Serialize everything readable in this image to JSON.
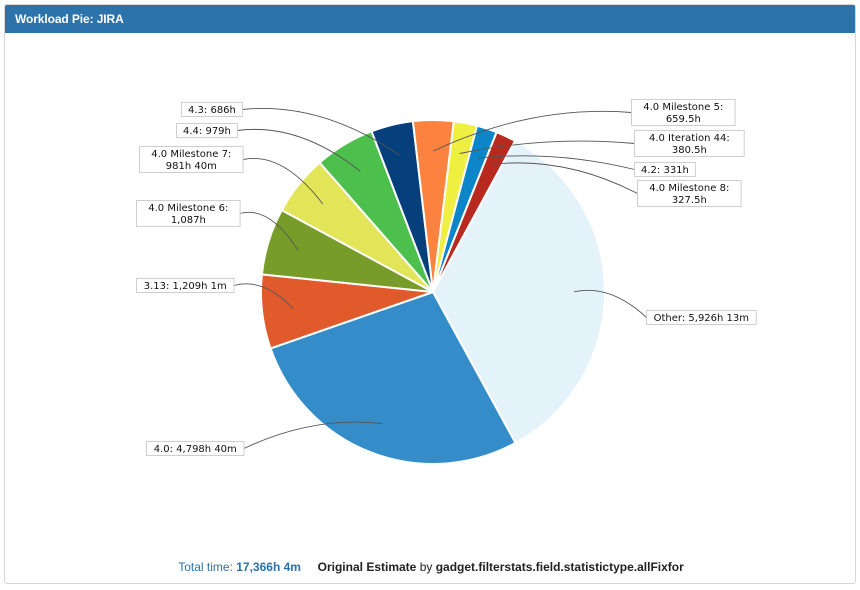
{
  "gadget": {
    "title": "Workload Pie: JIRA"
  },
  "footer": {
    "total_label": "Total time:",
    "total_value": "17,366h 4m",
    "statistic": "Original Estimate",
    "by": "by",
    "field": "gadget.filterstats.field.statistictype.allFixfor"
  },
  "chart_data": {
    "type": "pie",
    "title": "Workload Pie: JIRA",
    "unit": "hours",
    "total": 17366.07,
    "slices": [
      {
        "name": "Other",
        "label_line1": "Other: 5,926h 13m",
        "label_line2": "",
        "value": 5926.22,
        "color": "#e4f2fa"
      },
      {
        "name": "4.0",
        "label_line1": "4.0: 4,798h 40m",
        "label_line2": "",
        "value": 4798.67,
        "color": "#348dc8"
      },
      {
        "name": "3.13",
        "label_line1": "3.13: 1,209h 1m",
        "label_line2": "",
        "value": 1209.02,
        "color": "#e15a2c"
      },
      {
        "name": "4.0 Milestone 6",
        "label_line1": "4.0 Milestone 6:",
        "label_line2": "1,087h",
        "value": 1087,
        "color": "#789c29"
      },
      {
        "name": "4.0 Milestone 7",
        "label_line1": "4.0 Milestone 7:",
        "label_line2": "981h 40m",
        "value": 981.67,
        "color": "#e2e558"
      },
      {
        "name": "4.4",
        "label_line1": "4.4: 979h",
        "label_line2": "",
        "value": 979,
        "color": "#4dbf4d"
      },
      {
        "name": "4.3",
        "label_line1": "4.3: 686h",
        "label_line2": "",
        "value": 686,
        "color": "#053f7c"
      },
      {
        "name": "4.0 Milestone 5",
        "label_line1": "4.0 Milestone 5:",
        "label_line2": "659.5h",
        "value": 659.5,
        "color": "#fb833f"
      },
      {
        "name": "4.0 Iteration 44",
        "label_line1": "4.0 Iteration 44:",
        "label_line2": "380.5h",
        "value": 380.5,
        "color": "#eeef41"
      },
      {
        "name": "4.2",
        "label_line1": "4.2: 331h",
        "label_line2": "",
        "value": 331,
        "color": "#0d86c9"
      },
      {
        "name": "4.0 Milestone 8",
        "label_line1": "4.0 Milestone 8:",
        "label_line2": "327.5h",
        "value": 327.5,
        "color": "#b8291f"
      }
    ]
  }
}
